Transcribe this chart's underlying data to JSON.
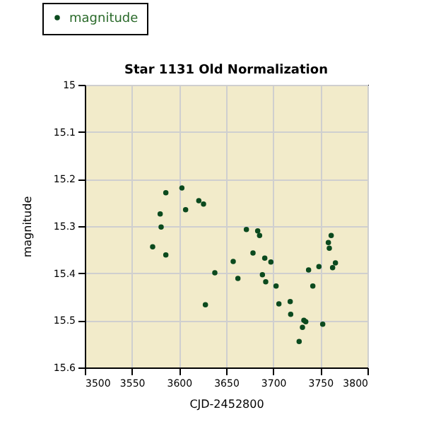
{
  "chart_data": {
    "type": "scatter",
    "title": "Star 1131 Old Normalization",
    "xlabel": "CJD-2452800",
    "ylabel": "magnitude",
    "x": [
      3586,
      3603,
      3621,
      3626,
      3607,
      3580,
      3581,
      3572,
      3586,
      3638,
      3628,
      3657.5,
      3662.5,
      3671.5,
      3683.5,
      3685.5,
      3678.5,
      3691,
      3697.5,
      3688.5,
      3692,
      3703,
      3706,
      3718,
      3718.5,
      3732.5,
      3734.5,
      3731,
      3727.5,
      3752.5,
      3742,
      3737.5,
      3748.5,
      3761.5,
      3758.5,
      3759.5,
      3766,
      3763
    ],
    "series": [
      {
        "name": "magnitude",
        "color": "#0b4a1e",
        "values": [
          15.229,
          15.219,
          15.246,
          15.253,
          15.265,
          15.274,
          15.302,
          15.344,
          15.361,
          15.399,
          15.467,
          15.375,
          15.411,
          15.307,
          15.31,
          15.32,
          15.357,
          15.368,
          15.376,
          15.403,
          15.418,
          15.427,
          15.465,
          15.46,
          15.487,
          15.5,
          15.503,
          15.515,
          15.545,
          15.508,
          15.427,
          15.393,
          15.386,
          15.32,
          15.335,
          15.347,
          15.378,
          15.388
        ]
      }
    ],
    "xlim": [
      3500,
      3800
    ],
    "xticks": [
      3500,
      3550,
      3600,
      3650,
      3700,
      3750,
      3800
    ],
    "ylim": [
      15.6,
      15
    ],
    "yticks": [
      15,
      15.1,
      15.2,
      15.3,
      15.4,
      15.5,
      15.6
    ],
    "grid": true,
    "legend": "top left",
    "marker": "circle"
  }
}
